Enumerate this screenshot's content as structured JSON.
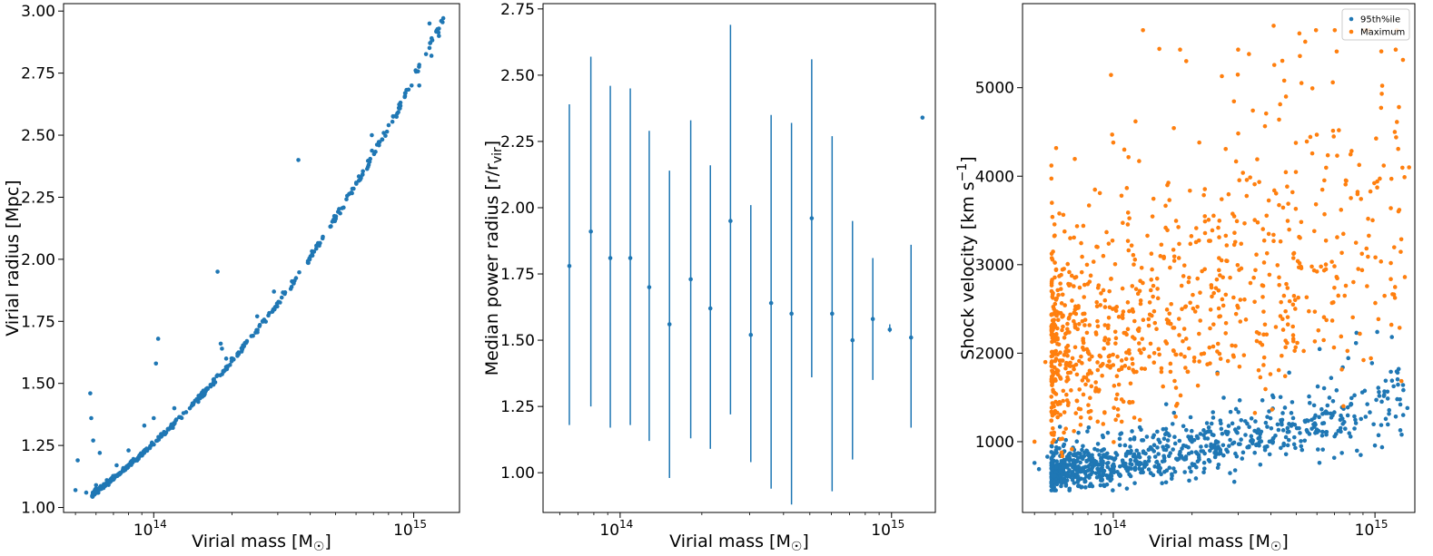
{
  "chart_data": [
    {
      "type": "scatter",
      "xscale": "log",
      "xlim": [
        45000000000000,
        1500000000000000
      ],
      "ylim": [
        0.98,
        3.03
      ],
      "xlabel": "Virial mass [M",
      "xlabel_sub": "☉",
      "xlabel_end": "]",
      "ylabel": "Virial radius [Mpc]",
      "yticks": [
        1.0,
        1.25,
        1.5,
        1.75,
        2.0,
        2.25,
        2.5,
        2.75,
        3.0
      ],
      "ytick_labels": [
        "1.00",
        "1.25",
        "1.50",
        "1.75",
        "2.00",
        "2.25",
        "2.50",
        "2.75",
        "3.00"
      ],
      "xticks": [
        100000000000000,
        1000000000000000
      ],
      "xtick_labels": [
        {
          "base": "10",
          "exp": "14"
        },
        {
          "base": "10",
          "exp": "15"
        }
      ],
      "series": [
        {
          "color": "#1f77b4",
          "curve": {
            "x_min": 58000000000000,
            "x_max": 1300000000000000,
            "y_at_min": 1.05,
            "y_at_max": 2.98,
            "points": 420
          },
          "outliers": [
            [
              50000000000000,
              1.07
            ],
            [
              51000000000000,
              1.19
            ],
            [
              55000000000000,
              1.06
            ],
            [
              57000000000000,
              1.46
            ],
            [
              57500000000000,
              1.36
            ],
            [
              58500000000000,
              1.27
            ],
            [
              60000000000000,
              1.09
            ],
            [
              62000000000000,
              1.22
            ],
            [
              66000000000000,
              1.11
            ],
            [
              72000000000000,
              1.17
            ],
            [
              80000000000000,
              1.23
            ],
            [
              92000000000000,
              1.33
            ],
            [
              100000000000000,
              1.36
            ],
            [
              102000000000000,
              1.58
            ],
            [
              104000000000000,
              1.68
            ],
            [
              120000000000000,
              1.4
            ],
            [
              140000000000000,
              1.41
            ],
            [
              176000000000000,
              1.95
            ],
            [
              181000000000000,
              1.66
            ],
            [
              183000000000000,
              1.64
            ],
            [
              190000000000000,
              1.6
            ],
            [
              250000000000000,
              1.77
            ],
            [
              290000000000000,
              1.87
            ],
            [
              360000000000000,
              2.4
            ],
            [
              690000000000000,
              2.5
            ],
            [
              1050000000000000,
              2.7
            ],
            [
              1150000000000000,
              2.95
            ],
            [
              1170000000000000,
              2.82
            ],
            [
              1250000000000000,
              2.9
            ]
          ]
        }
      ]
    },
    {
      "type": "errorbar",
      "xscale": "log",
      "xlim": [
        52000000000000,
        1450000000000000
      ],
      "ylim": [
        0.85,
        2.77
      ],
      "xlabel": "Virial mass [M",
      "xlabel_sub": "☉",
      "xlabel_end": "]",
      "ylabel": "Median power radius [r/r",
      "ylabel_sub": "vir",
      "ylabel_end": "]",
      "yticks": [
        1.0,
        1.25,
        1.5,
        1.75,
        2.0,
        2.25,
        2.5,
        2.75
      ],
      "ytick_labels": [
        "1.00",
        "1.25",
        "1.50",
        "1.75",
        "2.00",
        "2.25",
        "2.50",
        "2.75"
      ],
      "xticks": [
        100000000000000,
        1000000000000000
      ],
      "xtick_labels": [
        {
          "base": "10",
          "exp": "14"
        },
        {
          "base": "10",
          "exp": "15"
        }
      ],
      "color": "#1f77b4",
      "points": [
        {
          "x": 65000000000000,
          "y": 1.78,
          "low": 1.18,
          "high": 2.39
        },
        {
          "x": 78000000000000,
          "y": 1.91,
          "low": 1.25,
          "high": 2.57
        },
        {
          "x": 92000000000000,
          "y": 1.81,
          "low": 1.17,
          "high": 2.46
        },
        {
          "x": 109000000000000,
          "y": 1.81,
          "low": 1.18,
          "high": 2.45
        },
        {
          "x": 128000000000000,
          "y": 1.7,
          "low": 1.12,
          "high": 2.29
        },
        {
          "x": 152000000000000,
          "y": 1.56,
          "low": 0.98,
          "high": 2.14
        },
        {
          "x": 182000000000000,
          "y": 1.73,
          "low": 1.13,
          "high": 2.33
        },
        {
          "x": 215000000000000,
          "y": 1.62,
          "low": 1.09,
          "high": 2.16
        },
        {
          "x": 255000000000000,
          "y": 1.95,
          "low": 1.22,
          "high": 2.69
        },
        {
          "x": 303000000000000,
          "y": 1.52,
          "low": 1.04,
          "high": 2.01
        },
        {
          "x": 360000000000000,
          "y": 1.64,
          "low": 0.94,
          "high": 2.35
        },
        {
          "x": 428000000000000,
          "y": 1.6,
          "low": 0.88,
          "high": 2.32
        },
        {
          "x": 508000000000000,
          "y": 1.96,
          "low": 1.36,
          "high": 2.56
        },
        {
          "x": 604000000000000,
          "y": 1.6,
          "low": 0.93,
          "high": 2.27
        },
        {
          "x": 718000000000000,
          "y": 1.5,
          "low": 1.05,
          "high": 1.95
        },
        {
          "x": 853000000000000,
          "y": 1.58,
          "low": 1.35,
          "high": 1.81
        },
        {
          "x": 985000000000000,
          "y": 1.54,
          "low": 1.53,
          "high": 1.56
        },
        {
          "x": 1180000000000000,
          "y": 1.51,
          "low": 1.17,
          "high": 1.86
        },
        {
          "x": 1300000000000000,
          "y": 2.34,
          "low": 2.34,
          "high": 2.34
        }
      ]
    },
    {
      "type": "scatter",
      "xscale": "log",
      "xlim": [
        45000000000000,
        1420000000000000
      ],
      "ylim": [
        200,
        5950
      ],
      "xlabel": "Virial mass [M",
      "xlabel_sub": "☉",
      "xlabel_end": "]",
      "ylabel": "Shock velocity [km s",
      "ylabel_sup": "−1",
      "ylabel_end": "]",
      "yticks": [
        1000,
        2000,
        3000,
        4000,
        5000
      ],
      "ytick_labels": [
        "1000",
        "2000",
        "3000",
        "4000",
        "5000"
      ],
      "xticks": [
        100000000000000,
        1000000000000000
      ],
      "xtick_labels": [
        {
          "base": "10",
          "exp": "14"
        },
        {
          "base": "10",
          "exp": "15"
        }
      ],
      "legend": {
        "position": "upper right",
        "entries": [
          "95th%ile",
          "Maximum"
        ]
      },
      "series": [
        {
          "name": "95th%ile",
          "color": "#1f77b4",
          "trend": {
            "x_min": 58000000000000,
            "x_max": 1300000000000000,
            "y_at_min": 650,
            "y_at_max": 1500,
            "spread": 0.18,
            "points": 900
          },
          "extra_points": [
            [
              50000000000000,
              760
            ],
            [
              52000000000000,
              690
            ],
            [
              56000000000000,
              830
            ],
            [
              58000000000000,
              540
            ],
            [
              850000000000000,
              2230
            ],
            [
              1020000000000000,
              2240
            ],
            [
              1150000000000000,
              1790
            ],
            [
              1220000000000000,
              1780
            ],
            [
              1250000000000000,
              1420
            ],
            [
              1330000000000000,
              1380
            ],
            [
              1280000000000000,
              1640
            ],
            [
              680000000000000,
              1720
            ],
            [
              470000000000000,
              1780
            ],
            [
              250000000000000,
              1780
            ]
          ]
        },
        {
          "name": "Maximum",
          "color": "#ff7f0e",
          "trend": {
            "x_min": 58000000000000,
            "x_max": 1300000000000000,
            "y_at_min": 2000,
            "y_at_max": 3600,
            "spread": 0.28,
            "points": 900
          },
          "extra_points": [
            [
              50000000000000,
              1000
            ],
            [
              55000000000000,
              1900
            ],
            [
              58000000000000,
              4120
            ],
            [
              99000000000000,
              4470
            ],
            [
              100000000000000,
              4380
            ],
            [
              180000000000000,
              5430
            ],
            [
              190000000000000,
              5300
            ],
            [
              260000000000000,
              5130
            ],
            [
              300000000000000,
              5430
            ],
            [
              330000000000000,
              5380
            ],
            [
              410000000000000,
              5700
            ],
            [
              450000000000000,
              5080
            ],
            [
              690000000000000,
              5060
            ],
            [
              1200000000000000,
              5430
            ],
            [
              1190000000000000,
              4500
            ],
            [
              1350000000000000,
              4100
            ],
            [
              1300000000000000,
              2860
            ],
            [
              1020000000000000,
              3940
            ],
            [
              940000000000000,
              3090
            ]
          ]
        }
      ]
    }
  ]
}
